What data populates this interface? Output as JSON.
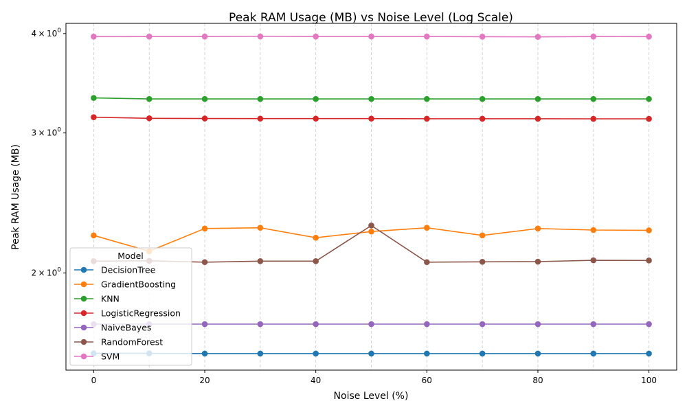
{
  "chart_data": {
    "type": "line",
    "title": "Peak RAM Usage (MB) vs Noise Level (Log Scale)",
    "xlabel": "Noise Level (%)",
    "ylabel": "Peak RAM Usage (MB)",
    "y_scale": "log",
    "xlim": [
      -5,
      105
    ],
    "ylim": [
      1.51,
      4.12
    ],
    "x_ticks": [
      0,
      20,
      40,
      60,
      80,
      100
    ],
    "y_ticks": [
      {
        "value": 2,
        "base": "2",
        "exp": "0"
      },
      {
        "value": 3,
        "base": "3",
        "exp": "0"
      },
      {
        "value": 4,
        "base": "4",
        "exp": "0"
      }
    ],
    "times_sign": "×",
    "grid": "vertical-dashed",
    "legend": {
      "title": "Model",
      "placement": "lower-left"
    },
    "x": [
      0,
      10,
      20,
      30,
      40,
      50,
      60,
      70,
      80,
      90,
      100
    ],
    "series": [
      {
        "name": "DecisionTree",
        "color": "#1f77b4",
        "values": [
          1.585,
          1.585,
          1.584,
          1.584,
          1.584,
          1.584,
          1.584,
          1.584,
          1.584,
          1.584,
          1.584
        ]
      },
      {
        "name": "GradientBoosting",
        "color": "#ff7f0e",
        "values": [
          2.23,
          2.13,
          2.275,
          2.28,
          2.215,
          2.255,
          2.28,
          2.23,
          2.275,
          2.265,
          2.263
        ]
      },
      {
        "name": "KNN",
        "color": "#2ca02c",
        "values": [
          3.32,
          3.31,
          3.31,
          3.31,
          3.31,
          3.31,
          3.31,
          3.31,
          3.31,
          3.31,
          3.31
        ]
      },
      {
        "name": "LogisticRegression",
        "color": "#d62728",
        "values": [
          3.14,
          3.13,
          3.128,
          3.127,
          3.127,
          3.127,
          3.126,
          3.126,
          3.126,
          3.125,
          3.125
        ]
      },
      {
        "name": "NaiveBayes",
        "color": "#9467bd",
        "values": [
          1.725,
          1.725,
          1.725,
          1.725,
          1.725,
          1.725,
          1.725,
          1.725,
          1.725,
          1.725,
          1.725
        ]
      },
      {
        "name": "RandomForest",
        "color": "#8c564b",
        "values": [
          2.07,
          2.072,
          2.064,
          2.07,
          2.07,
          2.295,
          2.064,
          2.066,
          2.067,
          2.075,
          2.074
        ]
      },
      {
        "name": "SVM",
        "color": "#e377c2",
        "values": [
          3.965,
          3.966,
          3.966,
          3.967,
          3.966,
          3.966,
          3.966,
          3.964,
          3.962,
          3.966,
          3.965
        ]
      }
    ]
  }
}
